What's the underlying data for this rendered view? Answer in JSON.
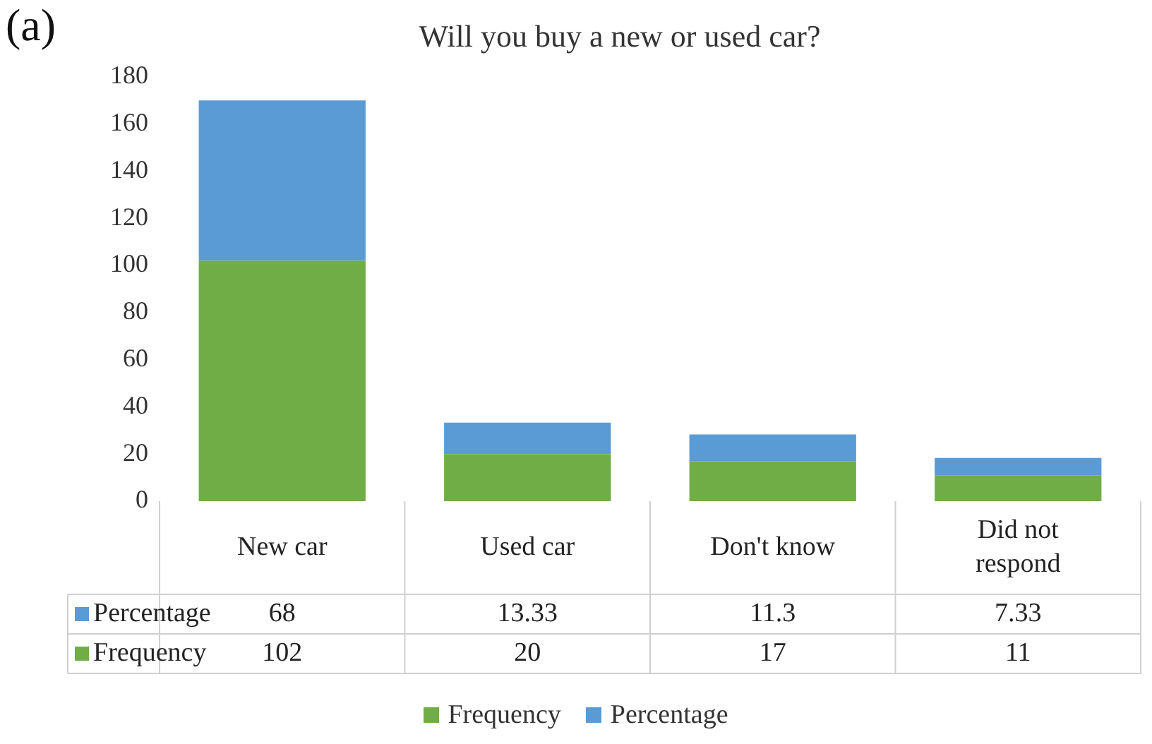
{
  "chart_data": {
    "type": "bar",
    "title": "Will you buy a new or used car?",
    "annotations": [
      "(a)"
    ],
    "categories": [
      "New car",
      "Used car",
      "Don't know",
      "Did not respond"
    ],
    "stacked": true,
    "series": [
      {
        "name": "Frequency",
        "color": "#70ad47",
        "values": [
          102,
          20,
          17,
          11
        ]
      },
      {
        "name": "Percentage",
        "color": "#5b9bd5",
        "values": [
          68,
          13.33,
          11.3,
          7.33
        ]
      }
    ],
    "ylim": [
      0,
      180
    ],
    "yticks": [
      0,
      20,
      40,
      60,
      80,
      100,
      120,
      140,
      160,
      180
    ],
    "grid": false,
    "legend": "bottom",
    "data_labels": true
  }
}
